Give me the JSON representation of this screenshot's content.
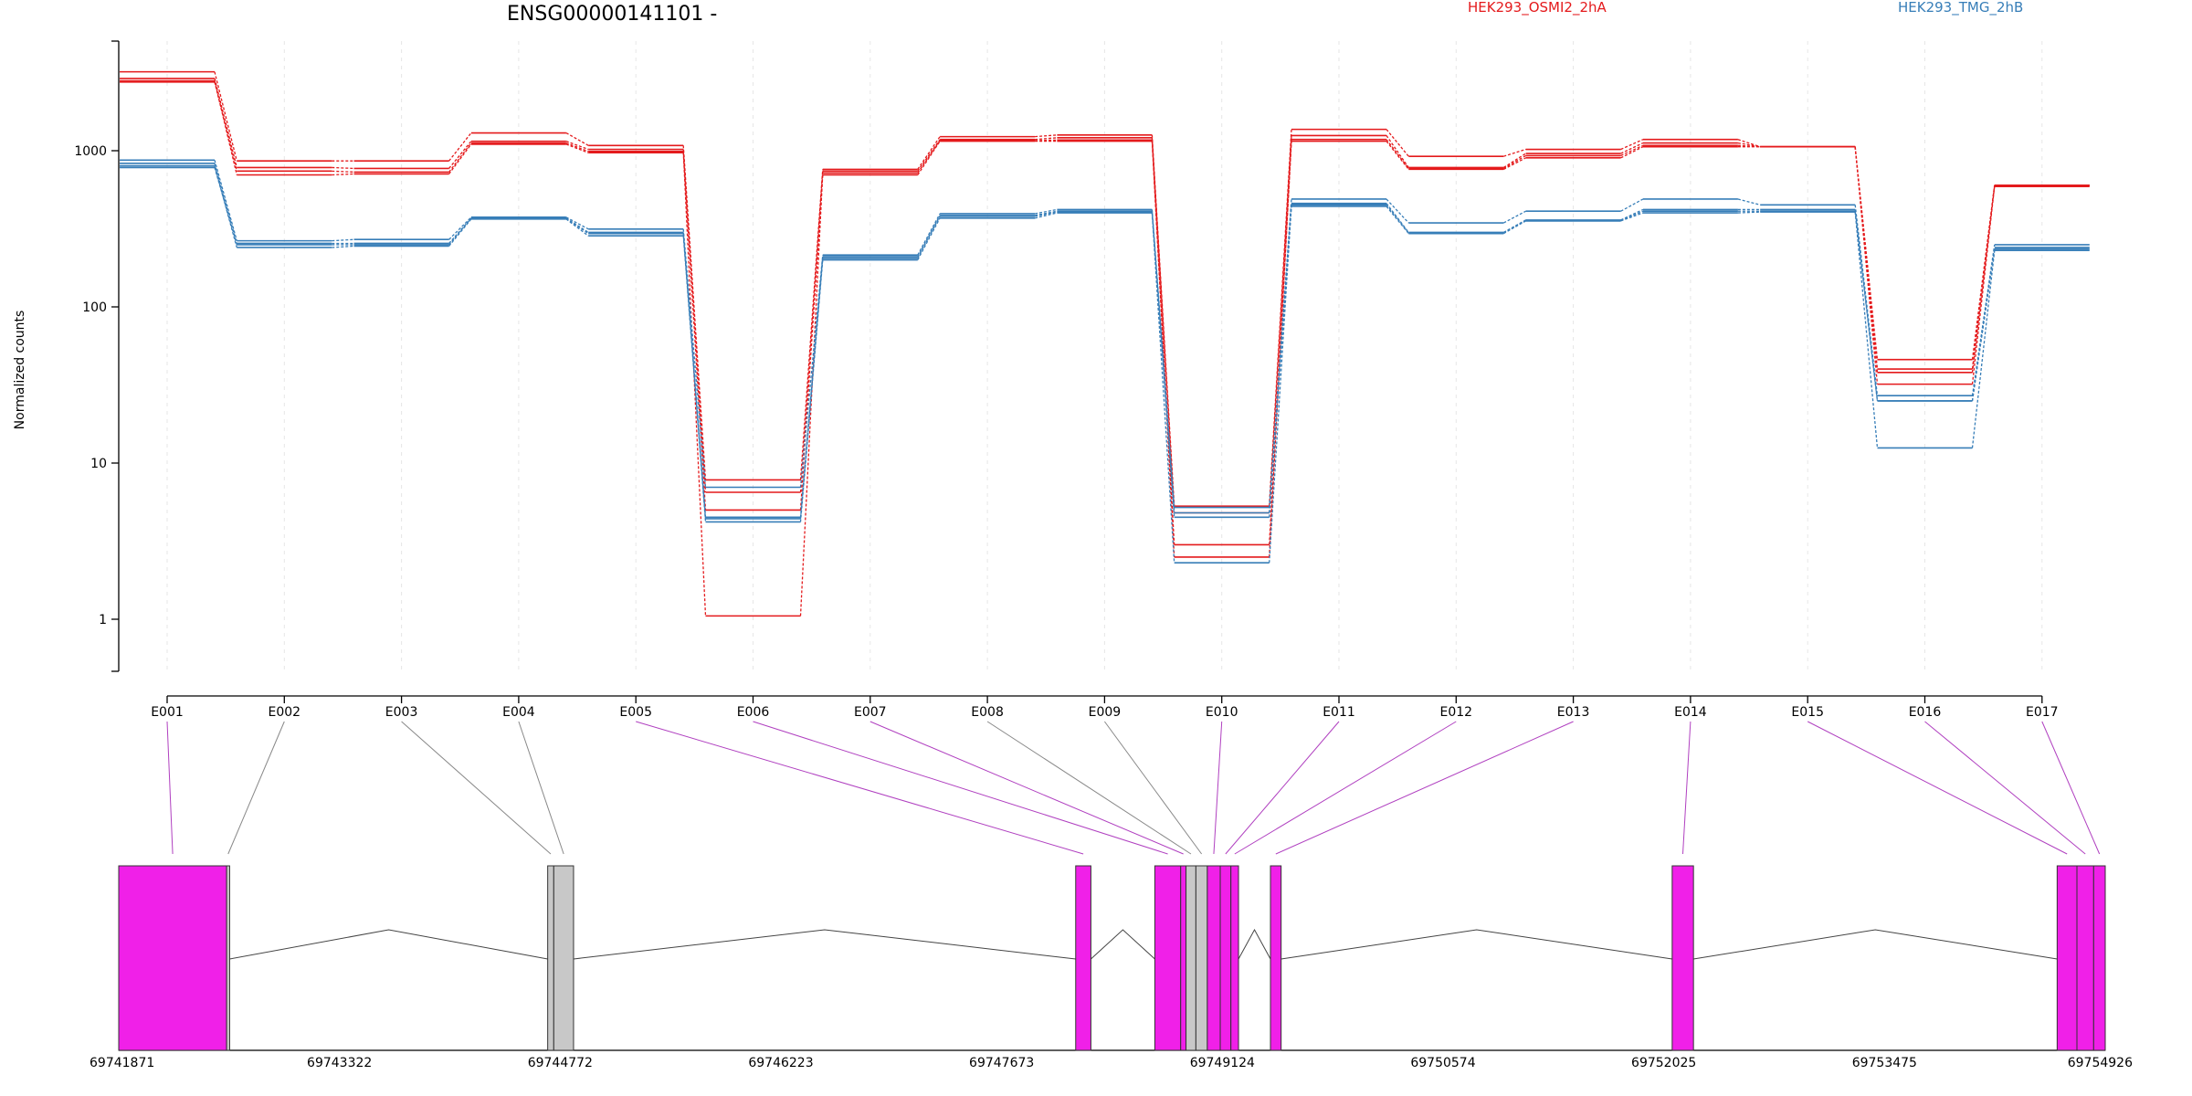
{
  "chart_data": {
    "type": "line",
    "title": "ENSG00000141101 -",
    "ylabel": "Normalized counts",
    "yscale": "log",
    "ylim": [
      0.4,
      4000
    ],
    "yticks": [
      1,
      10,
      100,
      1000
    ],
    "yticklabels": [
      "1",
      "10",
      "100",
      "1000"
    ],
    "categories": [
      "E001",
      "E002",
      "E003",
      "E004",
      "E005",
      "E006",
      "E007",
      "E008",
      "E009",
      "E010",
      "E011",
      "E012",
      "E013",
      "E014",
      "E015",
      "E016",
      "E017"
    ],
    "legend": [
      {
        "name": "HEK293_OSMI2_2hA",
        "color": "#e41a1c"
      },
      {
        "name": "HEK293_TMG_2hB",
        "color": "#377eb8"
      }
    ],
    "series": [
      {
        "group": 0,
        "values": [
          3200,
          860,
          860,
          1300,
          1080,
          7.8,
          760,
          1230,
          1260,
          5.3,
          1370,
          920,
          1020,
          1180,
          1060,
          46,
          600
        ]
      },
      {
        "group": 0,
        "values": [
          2900,
          780,
          770,
          1150,
          1020,
          6.5,
          740,
          1180,
          1210,
          4.8,
          1250,
          780,
          960,
          1120,
          1060,
          38,
          600
        ]
      },
      {
        "group": 0,
        "values": [
          2800,
          700,
          710,
          1100,
          970,
          5.0,
          700,
          1150,
          1150,
          3.0,
          1150,
          760,
          900,
          1060,
          1060,
          32,
          590
        ]
      },
      {
        "group": 0,
        "values": [
          2750,
          740,
          730,
          1120,
          990,
          1.05,
          720,
          1160,
          1170,
          2.5,
          1180,
          770,
          930,
          1080,
          1060,
          40,
          600
        ]
      },
      {
        "group": 1,
        "values": [
          870,
          265,
          270,
          375,
          315,
          7.0,
          215,
          395,
          420,
          5.2,
          490,
          345,
          410,
          490,
          450,
          27,
          250
        ]
      },
      {
        "group": 1,
        "values": [
          830,
          255,
          255,
          370,
          300,
          4.5,
          210,
          385,
          410,
          4.8,
          460,
          300,
          360,
          420,
          420,
          25,
          240
        ]
      },
      {
        "group": 1,
        "values": [
          800,
          240,
          245,
          365,
          285,
          4.2,
          200,
          370,
          400,
          4.5,
          440,
          295,
          355,
          400,
          405,
          12.5,
          230
        ]
      },
      {
        "group": 1,
        "values": [
          780,
          250,
          250,
          368,
          295,
          4.4,
          205,
          380,
          405,
          2.3,
          450,
          298,
          358,
          410,
          410,
          25,
          235
        ]
      }
    ],
    "gene_model": {
      "coord_labels": [
        "69741871",
        "69743322",
        "69744772",
        "69746223",
        "69747673",
        "69749124",
        "69750574",
        "69752025",
        "69753475",
        "69754926"
      ],
      "coord_range": [
        69741871,
        69754926
      ],
      "exons": [
        {
          "id": "E001",
          "start": 69741871,
          "end": 69742580,
          "highlighted": true
        },
        {
          "id": "E002",
          "start": 69742580,
          "end": 69742600,
          "highlighted": false
        },
        {
          "id": "E003",
          "start": 69744690,
          "end": 69744730,
          "highlighted": false
        },
        {
          "id": "E004",
          "start": 69744730,
          "end": 69744860,
          "highlighted": false
        },
        {
          "id": "E005",
          "start": 69748160,
          "end": 69748260,
          "highlighted": true
        },
        {
          "id": "E006",
          "start": 69748680,
          "end": 69748850,
          "highlighted": true
        },
        {
          "id": "E007",
          "start": 69748850,
          "end": 69748885,
          "highlighted": true
        },
        {
          "id": "E008",
          "start": 69748885,
          "end": 69748950,
          "highlighted": false
        },
        {
          "id": "E009",
          "start": 69748950,
          "end": 69749025,
          "highlighted": false
        },
        {
          "id": "E010",
          "start": 69749025,
          "end": 69749110,
          "highlighted": true
        },
        {
          "id": "E011",
          "start": 69749110,
          "end": 69749180,
          "highlighted": true
        },
        {
          "id": "E012",
          "start": 69749180,
          "end": 69749230,
          "highlighted": true
        },
        {
          "id": "E013",
          "start": 69749440,
          "end": 69749510,
          "highlighted": true
        },
        {
          "id": "E014",
          "start": 69752080,
          "end": 69752220,
          "highlighted": true
        },
        {
          "id": "E015",
          "start": 69754610,
          "end": 69754740,
          "highlighted": true
        },
        {
          "id": "E016",
          "start": 69754740,
          "end": 69754850,
          "highlighted": true
        },
        {
          "id": "E017",
          "start": 69754850,
          "end": 69754926,
          "highlighted": true
        }
      ],
      "colors": {
        "highlighted": "#f020e8",
        "other": "#c8c8c8",
        "link_highlighted": "#b040c0",
        "link_other": "#888888"
      }
    }
  }
}
